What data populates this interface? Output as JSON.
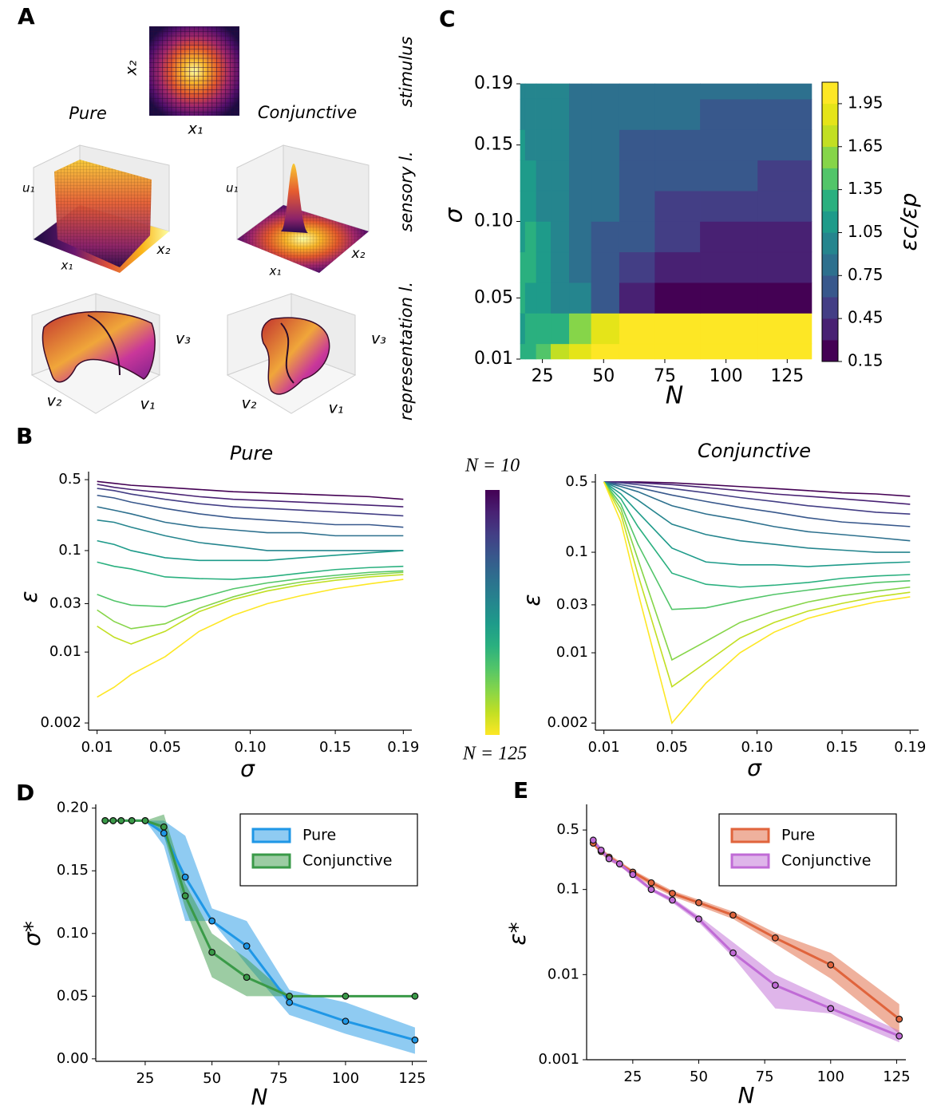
{
  "panel_labels": [
    "A",
    "B",
    "C",
    "D",
    "E"
  ],
  "panel_a": {
    "row_labels": [
      "stimulus",
      "sensory l.",
      "representation l."
    ],
    "columns": [
      "Pure",
      "Conjunctive"
    ],
    "stimulus": {
      "x": "x₁",
      "y": "x₂"
    },
    "sensory": [
      {
        "z": "u₁",
        "x": "x₁",
        "y": "x₂"
      },
      {
        "z": "u₁",
        "x": "x₁",
        "y": "x₂"
      }
    ],
    "representation": [
      {
        "x": "v₁",
        "y": "v₂",
        "z": "v₃"
      },
      {
        "x": "v₁",
        "y": "v₂",
        "z": "v₃"
      }
    ]
  },
  "chart_data": [
    {
      "type": "contour",
      "x": [
        16,
        20,
        25,
        32,
        40,
        50,
        63,
        79,
        100,
        126
      ],
      "y": [
        0.01,
        0.03,
        0.05,
        0.07,
        0.09,
        0.11,
        0.13,
        0.15,
        0.17,
        0.19
      ],
      "z": [
        [
          1.2,
          1.3,
          1.45,
          1.65,
          1.9,
          2.05,
          2.05,
          2.05,
          2.05,
          2.05
        ],
        [
          1.15,
          1.2,
          1.2,
          1.3,
          1.5,
          1.8,
          2.0,
          2.05,
          2.05,
          2.05
        ],
        [
          1.2,
          1.15,
          1.1,
          1.0,
          0.9,
          0.6,
          0.35,
          0.2,
          0.15,
          0.15
        ],
        [
          1.2,
          1.2,
          1.1,
          0.95,
          0.85,
          0.65,
          0.5,
          0.4,
          0.3,
          0.3
        ],
        [
          1.15,
          1.2,
          1.05,
          0.95,
          0.85,
          0.7,
          0.6,
          0.45,
          0.4,
          0.35
        ],
        [
          1.1,
          1.15,
          1.0,
          0.95,
          0.85,
          0.75,
          0.65,
          0.55,
          0.5,
          0.45
        ],
        [
          1.1,
          1.05,
          1.0,
          0.9,
          0.85,
          0.75,
          0.7,
          0.6,
          0.6,
          0.55
        ],
        [
          1.05,
          1.0,
          0.95,
          0.9,
          0.85,
          0.8,
          0.7,
          0.65,
          0.65,
          0.65
        ],
        [
          1.0,
          1.0,
          0.95,
          0.9,
          0.85,
          0.8,
          0.75,
          0.75,
          0.7,
          0.7
        ],
        [
          1.0,
          0.95,
          0.95,
          0.9,
          0.85,
          0.8,
          0.8,
          0.75,
          0.75,
          0.75
        ]
      ],
      "xlim": [
        16,
        135
      ],
      "ylim": [
        0.01,
        0.19
      ],
      "xticks": [
        25,
        50,
        75,
        100,
        125
      ],
      "yticks": [
        0.01,
        0.05,
        {
          "value": 0.1,
          "label": "0.10"
        },
        0.15,
        0.19
      ],
      "xlabel": "N",
      "ylabel": "σ",
      "levels": [
        0.15,
        0.3,
        0.45,
        0.6,
        0.75,
        0.9,
        1.05,
        1.2,
        1.35,
        1.5,
        1.65,
        1.8,
        1.95,
        2.1
      ],
      "colors": [
        "#440154",
        "#482173",
        "#433e85",
        "#38588c",
        "#2d708e",
        "#25858e",
        "#1e9b8a",
        "#2ab07f",
        "#52c569",
        "#86d549",
        "#c2df23",
        "#e5e419",
        "#fde725"
      ],
      "colorbar_ticks": [
        0.15,
        0.45,
        0.75,
        1.05,
        1.35,
        1.65,
        1.95
      ],
      "colorbar_label": "εc/εp"
    },
    {
      "type": "line",
      "title": "Pure",
      "x": [
        0.01,
        0.02,
        0.03,
        0.05,
        0.07,
        0.09,
        0.11,
        0.13,
        0.15,
        0.17,
        0.19
      ],
      "series": [
        {
          "color": "#440154",
          "values": [
            0.48,
            0.46,
            0.44,
            0.42,
            0.4,
            0.38,
            0.37,
            0.36,
            0.35,
            0.34,
            0.32
          ]
        },
        {
          "color": "#482173",
          "values": [
            0.45,
            0.42,
            0.4,
            0.37,
            0.34,
            0.32,
            0.31,
            0.3,
            0.29,
            0.28,
            0.27
          ]
        },
        {
          "color": "#433e85",
          "values": [
            0.41,
            0.39,
            0.36,
            0.32,
            0.29,
            0.27,
            0.26,
            0.25,
            0.24,
            0.23,
            0.22
          ]
        },
        {
          "color": "#38588c",
          "values": [
            0.35,
            0.33,
            0.3,
            0.26,
            0.23,
            0.21,
            0.2,
            0.19,
            0.18,
            0.18,
            0.17
          ]
        },
        {
          "color": "#2d708e",
          "values": [
            0.27,
            0.25,
            0.23,
            0.19,
            0.17,
            0.16,
            0.15,
            0.15,
            0.14,
            0.14,
            0.14
          ]
        },
        {
          "color": "#25858e",
          "values": [
            0.2,
            0.19,
            0.17,
            0.14,
            0.12,
            0.11,
            0.1,
            0.1,
            0.1,
            0.1,
            0.1
          ]
        },
        {
          "color": "#1e9b8a",
          "values": [
            0.125,
            0.115,
            0.1,
            0.085,
            0.08,
            0.08,
            0.08,
            0.085,
            0.09,
            0.095,
            0.1
          ]
        },
        {
          "color": "#2ab07f",
          "values": [
            0.077,
            0.07,
            0.066,
            0.055,
            0.053,
            0.052,
            0.055,
            0.06,
            0.065,
            0.068,
            0.07
          ]
        },
        {
          "color": "#52c569",
          "values": [
            0.037,
            0.032,
            0.029,
            0.028,
            0.034,
            0.042,
            0.048,
            0.053,
            0.057,
            0.061,
            0.063
          ]
        },
        {
          "color": "#86d549",
          "values": [
            0.026,
            0.02,
            0.017,
            0.019,
            0.027,
            0.035,
            0.043,
            0.049,
            0.054,
            0.058,
            0.061
          ]
        },
        {
          "color": "#c2df23",
          "values": [
            0.018,
            0.014,
            0.012,
            0.016,
            0.025,
            0.033,
            0.04,
            0.046,
            0.051,
            0.055,
            0.058
          ]
        },
        {
          "color": "#fde725",
          "values": [
            0.0036,
            0.0045,
            0.006,
            0.009,
            0.016,
            0.023,
            0.03,
            0.036,
            0.042,
            0.047,
            0.052
          ]
        }
      ],
      "xlim": [
        0.005,
        0.195
      ],
      "ylim": [
        0.0017,
        0.6
      ],
      "log_y": true,
      "xticks": [
        0.01,
        0.05,
        {
          "value": 0.1,
          "label": "0.10"
        },
        0.15,
        0.19
      ],
      "yticks": [
        0.002,
        0.01,
        0.03,
        0.1,
        0.5
      ],
      "xlabel": "σ",
      "ylabel": "ε",
      "colorbar_labels": [
        "N = 10",
        "N = 125"
      ]
    },
    {
      "type": "line",
      "title": "Conjunctive",
      "x": [
        0.01,
        0.02,
        0.03,
        0.05,
        0.07,
        0.09,
        0.11,
        0.13,
        0.15,
        0.17,
        0.19
      ],
      "series": [
        {
          "color": "#440154",
          "values": [
            0.5,
            0.5,
            0.5,
            0.49,
            0.47,
            0.45,
            0.43,
            0.41,
            0.39,
            0.38,
            0.36
          ]
        },
        {
          "color": "#482173",
          "values": [
            0.5,
            0.5,
            0.49,
            0.47,
            0.44,
            0.41,
            0.38,
            0.36,
            0.34,
            0.32,
            0.3
          ]
        },
        {
          "color": "#433e85",
          "values": [
            0.5,
            0.49,
            0.47,
            0.43,
            0.39,
            0.35,
            0.32,
            0.29,
            0.27,
            0.25,
            0.24
          ]
        },
        {
          "color": "#38588c",
          "values": [
            0.5,
            0.47,
            0.44,
            0.37,
            0.32,
            0.28,
            0.25,
            0.22,
            0.2,
            0.19,
            0.18
          ]
        },
        {
          "color": "#2d708e",
          "values": [
            0.5,
            0.45,
            0.4,
            0.29,
            0.24,
            0.21,
            0.18,
            0.16,
            0.15,
            0.14,
            0.13
          ]
        },
        {
          "color": "#25858e",
          "values": [
            0.5,
            0.42,
            0.33,
            0.19,
            0.15,
            0.13,
            0.12,
            0.11,
            0.105,
            0.1,
            0.1
          ]
        },
        {
          "color": "#1e9b8a",
          "values": [
            0.5,
            0.38,
            0.25,
            0.11,
            0.08,
            0.075,
            0.075,
            0.072,
            0.075,
            0.078,
            0.08
          ]
        },
        {
          "color": "#2ab07f",
          "values": [
            0.5,
            0.34,
            0.18,
            0.062,
            0.048,
            0.045,
            0.047,
            0.05,
            0.055,
            0.058,
            0.06
          ]
        },
        {
          "color": "#52c569",
          "values": [
            0.5,
            0.3,
            0.12,
            0.027,
            0.028,
            0.033,
            0.038,
            0.042,
            0.046,
            0.05,
            0.052
          ]
        },
        {
          "color": "#86d549",
          "values": [
            0.5,
            0.27,
            0.085,
            0.0085,
            0.013,
            0.02,
            0.026,
            0.032,
            0.037,
            0.041,
            0.045
          ]
        },
        {
          "color": "#c2df23",
          "values": [
            0.5,
            0.24,
            0.06,
            0.0046,
            0.008,
            0.014,
            0.02,
            0.026,
            0.031,
            0.036,
            0.04
          ]
        },
        {
          "color": "#fde725",
          "values": [
            0.5,
            0.2,
            0.04,
            0.002,
            0.005,
            0.01,
            0.016,
            0.022,
            0.027,
            0.032,
            0.036
          ]
        }
      ],
      "xlim": [
        0.005,
        0.195
      ],
      "ylim": [
        0.0017,
        0.6
      ],
      "log_y": true,
      "xticks": [
        0.01,
        0.05,
        {
          "value": 0.1,
          "label": "0.10"
        },
        0.15,
        0.19
      ],
      "yticks": [
        0.002,
        0.01,
        0.03,
        0.1,
        0.5
      ],
      "xlabel": "σ",
      "ylabel": "ε"
    },
    {
      "type": "line_band",
      "x": [
        10,
        13,
        16,
        20,
        25,
        32,
        40,
        50,
        63,
        79,
        100,
        126
      ],
      "series": [
        {
          "name": "Pure",
          "color": "#1f97e6",
          "values": [
            0.19,
            0.19,
            0.19,
            0.19,
            0.19,
            0.18,
            0.145,
            0.11,
            0.09,
            0.045,
            0.03,
            0.015
          ],
          "lower": [
            0.19,
            0.19,
            0.19,
            0.19,
            0.19,
            0.17,
            0.11,
            0.11,
            0.075,
            0.035,
            0.02,
            0.004
          ],
          "upper": [
            0.19,
            0.19,
            0.19,
            0.19,
            0.19,
            0.19,
            0.178,
            0.12,
            0.11,
            0.055,
            0.045,
            0.025
          ]
        },
        {
          "name": "Conjunctive",
          "color": "#3a9a48",
          "values": [
            0.19,
            0.19,
            0.19,
            0.19,
            0.19,
            0.185,
            0.13,
            0.085,
            0.065,
            0.05,
            0.05,
            0.05
          ],
          "lower": [
            0.19,
            0.19,
            0.19,
            0.19,
            0.19,
            0.178,
            0.12,
            0.065,
            0.05,
            0.05,
            0.05,
            0.05
          ],
          "upper": [
            0.19,
            0.19,
            0.19,
            0.19,
            0.19,
            0.195,
            0.14,
            0.1,
            0.08,
            0.05,
            0.05,
            0.05
          ]
        }
      ],
      "xlim": [
        6.5,
        130.5
      ],
      "ylim": [
        -0.002,
        0.203
      ],
      "xticks": [
        25,
        50,
        75,
        100,
        125
      ],
      "yticks": [
        {
          "value": 0,
          "label": "0.00"
        },
        0.05,
        {
          "value": 0.1,
          "label": "0.10"
        },
        0.15,
        {
          "value": 0.2,
          "label": "0.20"
        }
      ],
      "xlabel": "N",
      "ylabel": "σ*",
      "legend": "upper right"
    },
    {
      "type": "line_band",
      "x": [
        10,
        13,
        16,
        20,
        25,
        32,
        40,
        50,
        63,
        79,
        100,
        126
      ],
      "series": [
        {
          "name": "Pure",
          "color": "#e0643c",
          "values": [
            0.35,
            0.28,
            0.24,
            0.2,
            0.16,
            0.12,
            0.09,
            0.07,
            0.05,
            0.027,
            0.013,
            0.003
          ],
          "lower": [
            0.33,
            0.26,
            0.22,
            0.185,
            0.15,
            0.11,
            0.083,
            0.064,
            0.045,
            0.023,
            0.009,
            0.002
          ],
          "upper": [
            0.37,
            0.3,
            0.26,
            0.215,
            0.17,
            0.13,
            0.097,
            0.076,
            0.055,
            0.031,
            0.018,
            0.0045
          ]
        },
        {
          "name": "Conjunctive",
          "color": "#c06bd6",
          "values": [
            0.38,
            0.29,
            0.23,
            0.2,
            0.15,
            0.1,
            0.075,
            0.045,
            0.018,
            0.0075,
            0.004,
            0.0019
          ],
          "lower": [
            0.36,
            0.27,
            0.215,
            0.19,
            0.14,
            0.095,
            0.07,
            0.041,
            0.016,
            0.004,
            0.0035,
            0.0016
          ],
          "upper": [
            0.4,
            0.31,
            0.245,
            0.21,
            0.16,
            0.105,
            0.08,
            0.049,
            0.024,
            0.01,
            0.005,
            0.0022
          ]
        }
      ],
      "xlim": [
        7.5,
        128.5
      ],
      "ylim": [
        0.001,
        1
      ],
      "log_y": true,
      "xticks": [
        25,
        50,
        75,
        100,
        125
      ],
      "yticks": [
        0.001,
        0.01,
        0.1,
        0.5
      ],
      "xlabel": "N",
      "ylabel": "ε*",
      "legend": "upper right"
    }
  ]
}
